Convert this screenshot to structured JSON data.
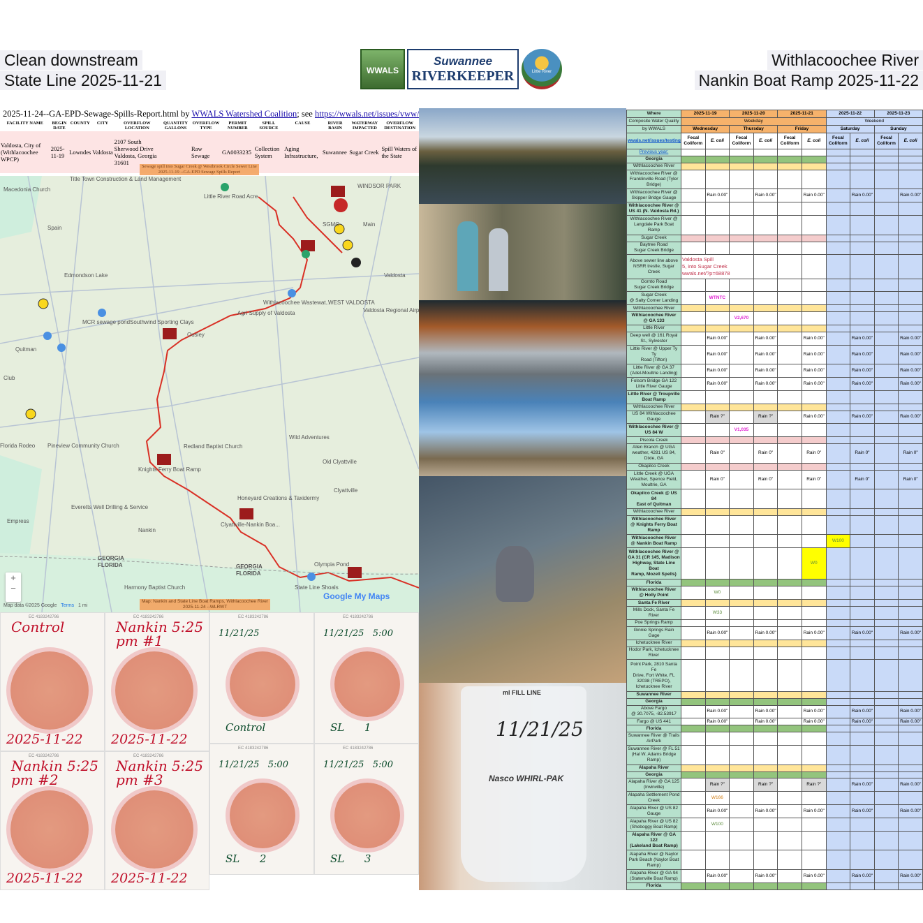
{
  "header": {
    "left_line1": "Clean downstream",
    "left_line2": "State Line 2025-11-21",
    "right_line1": "Withlacoochee River",
    "right_line2": "Nankin Boat Ramp 2025-11-22",
    "logos": {
      "wwals": "WWALS",
      "riverkeeper_top": "Suwannee",
      "riverkeeper_bottom": "RIVERKEEPER",
      "little_river": "Little River"
    }
  },
  "spill_report": {
    "title_prefix": "2025-11-24--GA-EPD-Sewage-Spills-Report.html by ",
    "org_link": "WWALS Watershed Coalition",
    "mid": "; see ",
    "url_link": "https://wwals.net/issues/vww/ga-spills",
    "columns": [
      "FACILITY NAME",
      "BEGIN DATE",
      "COUNTY",
      "CITY",
      "OVERFLOW LOCATION",
      "QUANTITY GALLONS",
      "OVERFLOW TYPE",
      "PERMIT NUMBER",
      "SPILL SOURCE",
      "CAUSE",
      "RIVER BASIN",
      "WATERWAY IMPACTED",
      "OVERFLOW DESTINATION"
    ],
    "row": [
      "Valdosta, City of (Withlacoochee WPCP)",
      "2025-11-19",
      "Lowndes",
      "Valdosta",
      "2107 South Sherwood Drive Valdosta, Georgia 31601",
      "",
      "Raw Sewage",
      "GA0033235",
      "Collection System",
      "Aging Infrastructure,",
      "Suwannee",
      "Sugar Creek",
      "Spill Waters of the State"
    ],
    "caption_line1": "Sewage spill into Sugar Creek @ Westbrook Circle Sewer Line",
    "caption_line2": "2025-11-19 --GA-EPD Sewage Spills Report"
  },
  "map": {
    "labels": [
      "Little River Road Acre",
      "WINDSOR PARK",
      "Macedonia Church",
      "Title Town Construction & Land Management",
      "Spain",
      "Edmondson Lake",
      "Valdosta",
      "Withlacoochee Wastewat...",
      "Agri Supply of Valdosta",
      "WEST VALDOSTA",
      "MCR sewage pond",
      "Southwind Sporting Clays",
      "Ousley",
      "Quitman",
      "Valdosta Regional Airport",
      "Club",
      "Redland Baptist Church",
      "Wild Adventures",
      "Pineview Community Church",
      "Florida Rodeo",
      "Knights Ferry Boat Ramp",
      "Old Clyattville",
      "Clyattville",
      "Honeyard Creations & Taxidermy",
      "Everetts Well Drilling & Service",
      "Clyattville-Nankin Boa...",
      "Empress",
      "Nankin",
      "GEORGIA",
      "FLORIDA",
      "GEORGIA",
      "FLORIDA",
      "Olympia Pond",
      "Harmony Baptist Church",
      "State Line Shoals",
      "SGMC",
      "Main"
    ],
    "zoom_in": "+",
    "zoom_out": "−",
    "attribution": "Map data ©2025 Google",
    "terms": "Terms",
    "scale": "1 mi",
    "brand": "Google My Maps",
    "caption_line1": "Map: Nankin and State Line Boat Ramps, Withlacoochee River",
    "caption_line2": "2025-11-24 --WLRWT",
    "colors": {
      "river": "#d93025",
      "land": "#e6eedd",
      "florida": "#cfeedd"
    }
  },
  "plates": {
    "nankin": [
      {
        "ec": "EC 4183242786",
        "label": "Control",
        "date": "2025-11-22"
      },
      {
        "ec": "EC 4183242786",
        "label": "Nankin 5:25 pm #1",
        "date": "2025-11-22"
      },
      {
        "ec": "EC 4183242786",
        "label": "Nankin 5:25 pm #2",
        "date": "2025-11-22"
      },
      {
        "ec": "EC 4183242786",
        "label": "Nankin 5:25 pm #3",
        "date": "2025-11-22"
      }
    ],
    "stateline": [
      {
        "ec": "EC 4183242786",
        "top": "11/21/25",
        "bottom": "Control"
      },
      {
        "ec": "EC 4183242786",
        "top": "11/21/25   5:00",
        "bottom": "SL      1"
      },
      {
        "ec": "EC 4183242786",
        "top": "11/21/25   5:00",
        "bottom": "SL      2"
      },
      {
        "ec": "EC 4183242786",
        "top": "11/21/25   5:00",
        "bottom": "SL      3"
      }
    ]
  },
  "photos": {
    "bag_label": "11/21/25",
    "bag_brand": "Nasco WHIRL-PAK",
    "bag_fill": "ml FILL LINE"
  },
  "wq_table": {
    "where": "Where",
    "title1": "Composite Water Quality",
    "title2": "by WWALS",
    "link": "wwals.net/issues/testing/",
    "prev_year": "Previous year:",
    "dates": [
      "2025-11-19",
      "2025-11-20",
      "2025-11-21",
      "2025-11-22",
      "2025-11-23"
    ],
    "weekday": "Weekday",
    "weekend": "Weekend",
    "days": [
      "Wednesday",
      "Thursday",
      "Friday",
      "Saturday",
      "Sunday"
    ],
    "fecal": "Fecal Coliform",
    "ecoli": "E. coli",
    "colors": {
      "where": "#b7e1cd",
      "weekday": "#f6b26b",
      "weekend": "#c9daf8",
      "state": "#93c47d",
      "river": "#ffe599",
      "creek": "#f4cccc",
      "highlight": "#ffff00"
    },
    "rows": [
      {
        "label": "Georgia",
        "type": "green",
        "bold": true
      },
      {
        "label": "Withlacoochee River",
        "type": "yellow"
      },
      {
        "label": "Withlacoochee River @\nFranklinville Road (Tyler\nBridge)"
      },
      {
        "label": "Withlacoochee River @\nSkipper Bridge Gauge",
        "cells": [
          "",
          "Rain 0.00\"",
          "",
          "Rain 0.00\"",
          "",
          "Rain 0.00\"",
          "",
          "Rain 0.00\"",
          "",
          "Rain 0.00\""
        ]
      },
      {
        "label": "Withlacoochee River @\nUS 41 (N. Valdosta Rd.)",
        "bold": true
      },
      {
        "label": "Withlacoochee River @\nLangdale Park Boat Ramp"
      },
      {
        "label": "Sugar Creek",
        "type": "pink"
      },
      {
        "label": "Baytree Road\nSugar Creek Bridge"
      },
      {
        "label": "Above sewer line above\nNSRR trestle, Sugar\nCreek",
        "spill": "Valdosta Spill\n5, into Sugar Creek\nwwals.net/?p=68878"
      },
      {
        "label": "Gornto Road\nSugar Creek Bridge"
      },
      {
        "label": "Sugar Creek\n@ Salty Corner Landing",
        "cells": [
          "",
          "WTNTC",
          "",
          "",
          "",
          "",
          "",
          "",
          "",
          ""
        ],
        "mark": "magenta"
      },
      {
        "label": "Withlacoochee River",
        "type": "yellow"
      },
      {
        "label": "Withlacoochee River\n@ GA 133",
        "bold": true,
        "cells": [
          "",
          "",
          "V2,670",
          "",
          "",
          "",
          "",
          "",
          "",
          ""
        ],
        "mark": "magenta"
      },
      {
        "label": "Little River",
        "type": "yellow"
      },
      {
        "label": "Deep well @ 161 Royal\nSt., Sylvester",
        "cells": [
          "",
          "Rain 0.00\"",
          "",
          "Rain 0.00\"",
          "",
          "Rain 0.00\"",
          "",
          "Rain 0.00\"",
          "",
          "Rain 0.00\""
        ]
      },
      {
        "label": "Little River @ Upper Ty Ty\nRoad (Tifton)",
        "cells": [
          "",
          "Rain 0.00\"",
          "",
          "Rain 0.00\"",
          "",
          "Rain 0.00\"",
          "",
          "Rain 0.00\"",
          "",
          "Rain 0.00\""
        ]
      },
      {
        "label": "Little River @ GA 37\n(Adel-Moultrie Landing)",
        "cells": [
          "",
          "Rain 0.00\"",
          "",
          "Rain 0.00\"",
          "",
          "Rain 0.00\"",
          "",
          "Rain 0.00\"",
          "",
          "Rain 0.00\""
        ]
      },
      {
        "label": "Folsom Bridge GA 122\nLittle River Gauge",
        "cells": [
          "",
          "Rain 0.00\"",
          "",
          "Rain 0.00\"",
          "",
          "Rain 0.00\"",
          "",
          "Rain 0.00\"",
          "",
          "Rain 0.00\""
        ]
      },
      {
        "label": "Little River @ Troupville\nBoat Ramp",
        "bold": true
      },
      {
        "label": "Withlacoochee River",
        "type": "yellow"
      },
      {
        "label": "US 84 Withlacoochee\nGauge",
        "cells": [
          "",
          "Rain ?\"",
          "",
          "Rain ?\"",
          "",
          "Rain 0.00\"",
          "",
          "Rain 0.00\"",
          "",
          "Rain 0.00\""
        ],
        "gray": [
          1,
          3
        ]
      },
      {
        "label": "Withlacoochee River @\nUS 84 W",
        "bold": true,
        "cells": [
          "",
          "",
          "V1,035",
          "",
          "",
          "",
          "",
          "",
          "",
          ""
        ],
        "mark": "magenta"
      },
      {
        "label": "Piscola Creek",
        "type": "pink"
      },
      {
        "label": "Allen Branch @ UGA\nweather, 4281 US 84,\nDixie, GA",
        "cells": [
          "",
          "Rain 0\"",
          "",
          "Rain 0\"",
          "",
          "Rain 0\"",
          "",
          "Rain 0\"",
          "",
          "Rain 0\""
        ]
      },
      {
        "label": "Okapilco Creek",
        "type": "pink"
      },
      {
        "label": "Little Creek @ UGA\nWeather, Spence Field,\nMoultrie, GA",
        "cells": [
          "",
          "Rain 0\"",
          "",
          "Rain 0\"",
          "",
          "Rain 0\"",
          "",
          "Rain 0\"",
          "",
          "Rain 0\""
        ]
      },
      {
        "label": "Okapilco Creek @ US 84\nEast of Quitman",
        "bold": true
      },
      {
        "label": "Withlacoochee River",
        "type": "yellow"
      },
      {
        "label": "Withlacoochee River\n@ Knights Ferry Boat\nRamp",
        "bold": true
      },
      {
        "label": "Withlacoochee River\n@ Nankin Boat Ramp",
        "bold": true,
        "cells": [
          "",
          "",
          "",
          "",
          "",
          "",
          "W100",
          "",
          "",
          ""
        ],
        "mark": "green",
        "hl": [
          6
        ]
      },
      {
        "label": "Withlacoochee River @\nGA 31 (CR 145, Madison\nHighway, State Line Boat\nRamp, Mozell Spells)",
        "bold": true,
        "cells": [
          "",
          "",
          "",
          "",
          "",
          "W0",
          "",
          "",
          "",
          ""
        ],
        "mark": "green",
        "hl": [
          5
        ]
      },
      {
        "label": "Florida",
        "type": "green",
        "bold": true
      },
      {
        "label": "Withlacoochee River\n@ Holly Point",
        "bold": true,
        "cells": [
          "",
          "W0",
          "",
          "",
          "",
          "",
          "",
          "",
          "",
          ""
        ],
        "mark": "green"
      },
      {
        "label": "Santa Fe River",
        "type": "yellow",
        "bold": true
      },
      {
        "label": "Mills Dock, Santa Fe River",
        "cells": [
          "",
          "W33",
          "",
          "",
          "",
          "",
          "",
          "",
          "",
          ""
        ],
        "mark": "green"
      },
      {
        "label": "Poe Springs Ramp"
      },
      {
        "label": "Ginnie Springs Rain Gage",
        "cells": [
          "",
          "Rain 0.00\"",
          "",
          "Rain 0.00\"",
          "",
          "Rain 0.00\"",
          "",
          "Rain 0.00\"",
          "",
          "Rain 0.00\""
        ]
      },
      {
        "label": "Ichetucknee River",
        "type": "yellow"
      },
      {
        "label": "Hodor Park, Ichetucknee\nRiver"
      },
      {
        "label": "Point Park, 2810 Santa Fe\nDrive, Fort White, FL\n32038 (TREPO),\nIchetucknee River"
      },
      {
        "label": "Suwannee River",
        "type": "yellow",
        "bold": true
      },
      {
        "label": "Georgia",
        "type": "green",
        "bold": true
      },
      {
        "label": "Above Fargo\n@ 30.7075, -82.53917",
        "cells": [
          "",
          "Rain 0.00\"",
          "",
          "Rain 0.00\"",
          "",
          "Rain 0.00\"",
          "",
          "Rain 0.00\"",
          "",
          "Rain 0.00\""
        ]
      },
      {
        "label": "Fargo @ US 441",
        "cells": [
          "",
          "Rain 0.00\"",
          "",
          "Rain 0.00\"",
          "",
          "Rain 0.00\"",
          "",
          "Rain 0.00\"",
          "",
          "Rain 0.00\""
        ]
      },
      {
        "label": "Florida",
        "type": "green",
        "bold": true
      },
      {
        "label": "Suwannee River @ Trails\nAirPark"
      },
      {
        "label": "Suwannee River @ FL 51\n(Hal W. Adams Bridge\nRamp)"
      },
      {
        "label": "Alapaha River",
        "type": "yellow",
        "bold": true
      },
      {
        "label": "Georgia",
        "type": "green",
        "bold": true
      },
      {
        "label": "Alapaha River @ GA 125\n(Irwinville)",
        "cells": [
          "",
          "Rain ?\"",
          "",
          "Rain ?\"",
          "",
          "Rain ?\"",
          "",
          "Rain 0.00\"",
          "",
          "Rain 0.00\""
        ],
        "gray": [
          1,
          3,
          5
        ]
      },
      {
        "label": "Alapaha Settlement Pond\nCreek",
        "cells": [
          "",
          "W166",
          "",
          "",
          "",
          "",
          "",
          "",
          "",
          ""
        ],
        "mark": "orange"
      },
      {
        "label": "Alapaha River @ US 82\nGauge",
        "cells": [
          "",
          "Rain 0.00\"",
          "",
          "Rain 0.00\"",
          "",
          "Rain 0.00\"",
          "",
          "Rain 0.00\"",
          "",
          "Rain 0.00\""
        ]
      },
      {
        "label": "Alapaha River @ US 82\n(Sheboggy Boat Ramp)",
        "cells": [
          "",
          "W100",
          "",
          "",
          "",
          "",
          "",
          "",
          "",
          ""
        ],
        "mark": "green"
      },
      {
        "label": "Alapaha River @ GA 122\n(Lakeland Boat Ramp)",
        "bold": true
      },
      {
        "label": "Alapaha River @ Naylor\nPark Beach (Naylor Boat\nRamp)"
      },
      {
        "label": "Alapaha River @ GA 94\n(Statenville Boat Ramp)",
        "cells": [
          "",
          "Rain 0.00\"",
          "",
          "Rain 0.00\"",
          "",
          "Rain 0.00\"",
          "",
          "Rain 0.00\"",
          "",
          "Rain 0.00\""
        ]
      },
      {
        "label": "Florida",
        "type": "green",
        "bold": true
      }
    ]
  }
}
